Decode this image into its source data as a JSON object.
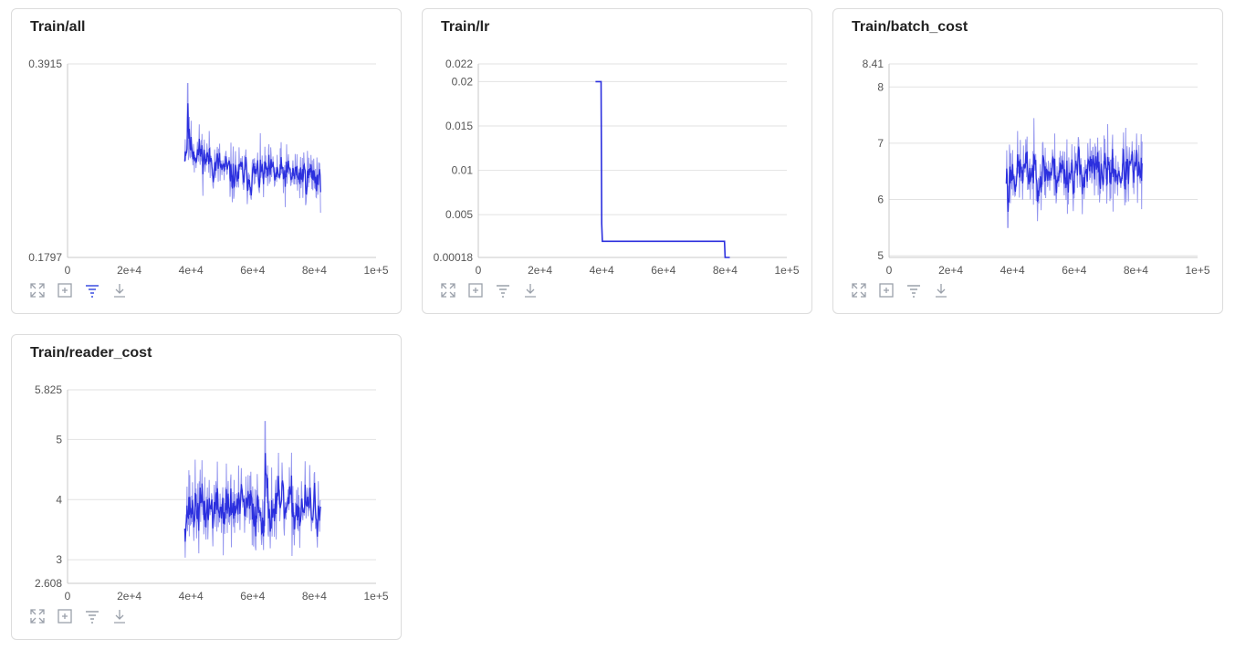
{
  "colors": {
    "line_dark": "#2b2fde",
    "line_light": "#9496ef",
    "grid": "#e2e2e2",
    "axis": "#c8c8c8",
    "tool_icon": "#9aa0aa",
    "tool_icon_active": "#3c4fe0"
  },
  "toolbar": {
    "icons": [
      "expand-icon",
      "fit-screen-icon",
      "filter-icon",
      "download-icon"
    ]
  },
  "chart_data": [
    {
      "type": "line",
      "title": "Train/all",
      "x_ticks": [
        "0",
        "2e+4",
        "4e+4",
        "6e+4",
        "8e+4",
        "1e+5"
      ],
      "y_ticks": [
        "0.3915",
        "0.1797"
      ],
      "xlim": [
        0,
        100000
      ],
      "ylim": [
        0.1797,
        0.3915
      ],
      "series": [
        {
          "style": "noisy",
          "x_start": 38000,
          "x_end": 82000,
          "level_start": 0.305,
          "level_end": 0.27,
          "noise": 0.016,
          "spike": {
            "x": 39000,
            "y": 0.37
          },
          "seed": 11
        }
      ],
      "active_tool": "filter-icon"
    },
    {
      "type": "line",
      "title": "Train/lr",
      "x_ticks": [
        "0",
        "2e+4",
        "4e+4",
        "6e+4",
        "8e+4",
        "1e+5"
      ],
      "y_ticks": [
        "0.022",
        "0.02",
        "0.015",
        "0.01",
        "0.005",
        "0.00018"
      ],
      "xlim": [
        0,
        100000
      ],
      "ylim": [
        0.00018,
        0.022
      ],
      "series": [
        {
          "style": "step",
          "points": [
            [
              38000,
              0.02
            ],
            [
              39800,
              0.02
            ],
            [
              40000,
              0.004
            ],
            [
              40200,
              0.002
            ],
            [
              79800,
              0.002
            ],
            [
              80000,
              0.00018
            ],
            [
              81500,
              0.00018
            ]
          ]
        }
      ],
      "active_tool": ""
    },
    {
      "type": "line",
      "title": "Train/batch_cost",
      "x_ticks": [
        "0",
        "2e+4",
        "4e+4",
        "6e+4",
        "8e+4",
        "1e+5"
      ],
      "y_ticks": [
        "8.41",
        "8",
        "7",
        "6",
        "5"
      ],
      "xlim": [
        0,
        100000
      ],
      "ylim": [
        4.97,
        8.41
      ],
      "series": [
        {
          "style": "noisy",
          "x_start": 38000,
          "x_end": 82000,
          "level_start": 6.5,
          "level_end": 6.5,
          "noise": 0.34,
          "spike": {
            "x": 38500,
            "y": 5.5
          },
          "seed": 23
        }
      ],
      "active_tool": ""
    },
    {
      "type": "line",
      "title": "Train/reader_cost",
      "x_ticks": [
        "0",
        "2e+4",
        "4e+4",
        "6e+4",
        "8e+4",
        "1e+5"
      ],
      "y_ticks": [
        "5.825",
        "5",
        "4",
        "3",
        "2.608"
      ],
      "xlim": [
        0,
        100000
      ],
      "ylim": [
        2.608,
        5.825
      ],
      "series": [
        {
          "style": "noisy",
          "x_start": 38000,
          "x_end": 82000,
          "level_start": 3.85,
          "level_end": 3.85,
          "noise": 0.36,
          "spike": {
            "x": 64000,
            "y": 5.3
          },
          "seed": 37
        }
      ],
      "active_tool": ""
    }
  ]
}
